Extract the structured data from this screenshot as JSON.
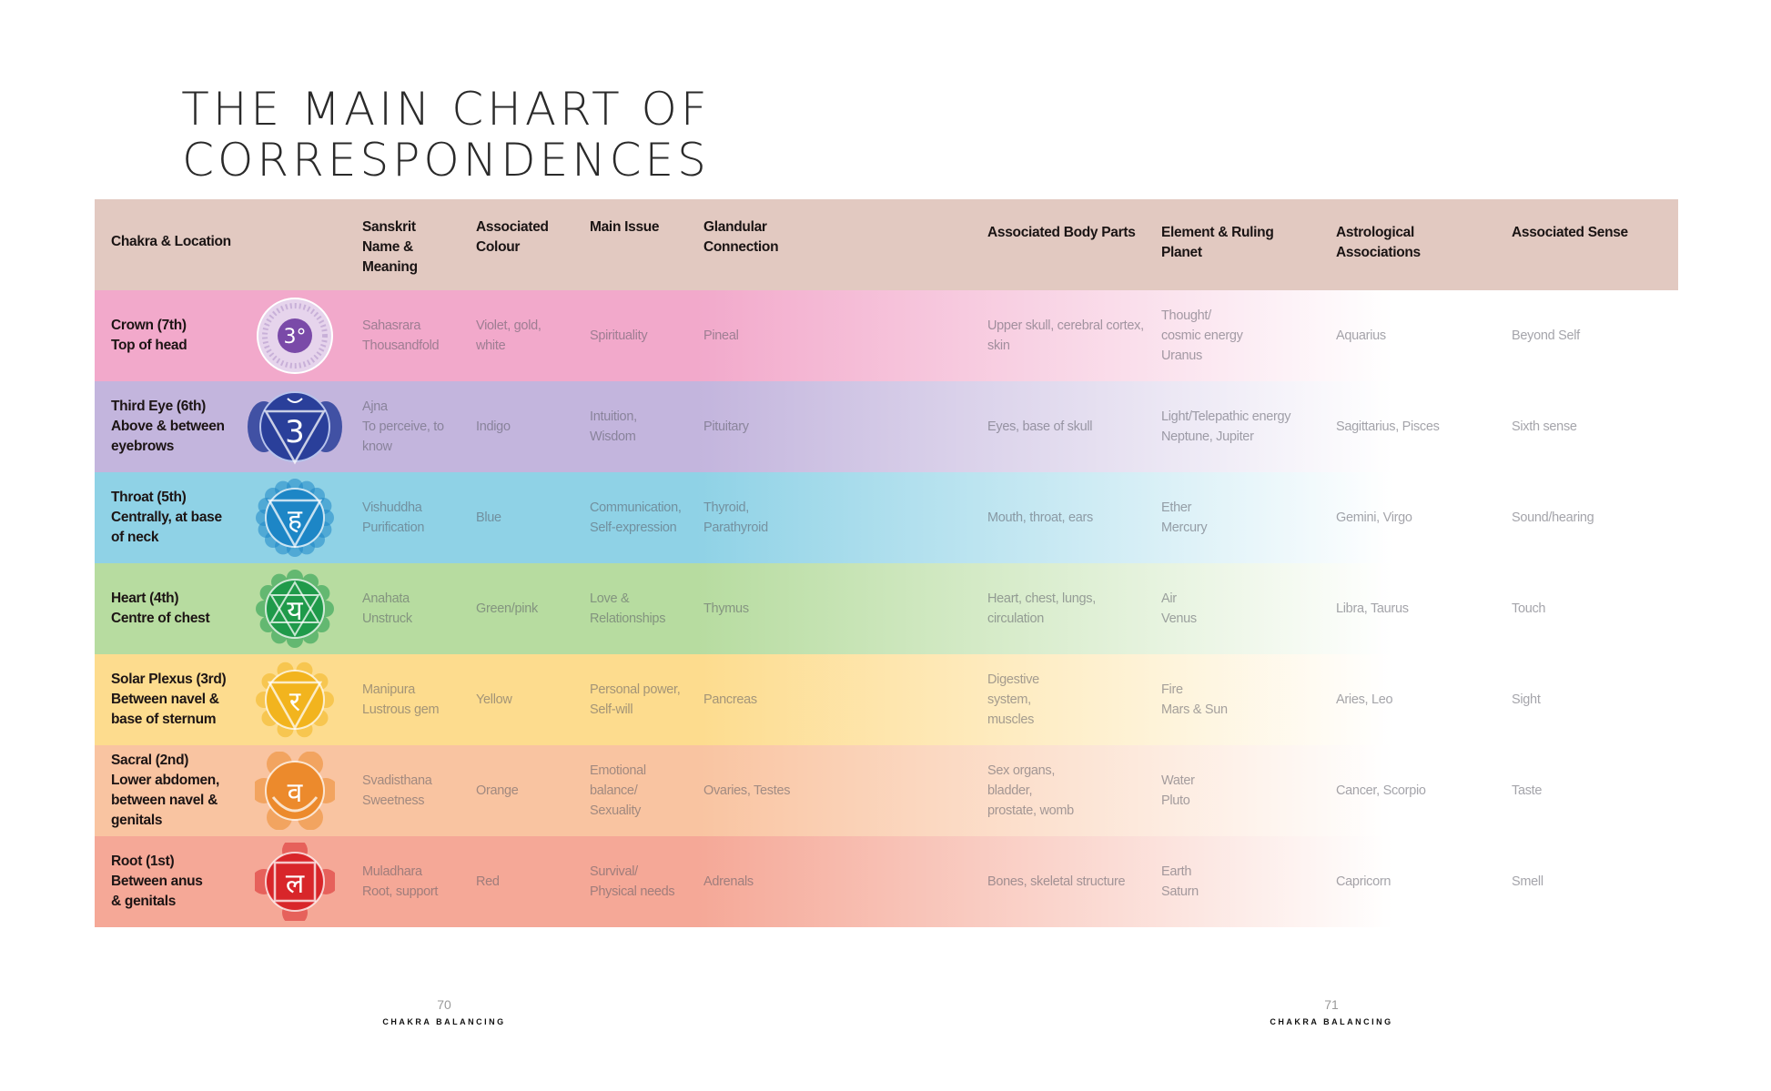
{
  "title": {
    "line1": "THE MAIN CHART OF",
    "line2": "CORRESPONDENCES"
  },
  "header": {
    "background": "#e2c9c1",
    "columns": [
      {
        "label": [
          "Chakra & Location"
        ]
      },
      {
        "label": [
          "Sanskrit",
          "Name &",
          "Meaning"
        ]
      },
      {
        "label": [
          "Associated",
          "Colour"
        ]
      },
      {
        "label": [
          "Main Issue"
        ]
      },
      {
        "label": [
          "Glandular",
          "Connection"
        ]
      },
      {
        "label": [
          "Associated Body Parts"
        ]
      },
      {
        "label": [
          "Element & Ruling",
          "Planet"
        ]
      },
      {
        "label": [
          "Astrological",
          "Associations"
        ]
      },
      {
        "label": [
          "Associated Sense"
        ]
      }
    ]
  },
  "rows": [
    {
      "color": "#f2a9cb",
      "icon": "crown-chakra-icon",
      "icon_color": "#7a4aa8",
      "location": [
        "Crown (7th)",
        "Top of head"
      ],
      "sanskrit": [
        "Sahasrara",
        "Thousandfold"
      ],
      "colour": [
        "Violet, gold,",
        "white"
      ],
      "issue": [
        "Spirituality"
      ],
      "gland": [
        "Pineal"
      ],
      "body": [
        "Upper skull, cerebral cortex,",
        "skin"
      ],
      "element": [
        "Thought/",
        "cosmic energy",
        "Uranus"
      ],
      "astro": [
        "Aquarius"
      ],
      "sense": [
        "Beyond Self"
      ]
    },
    {
      "color": "#c3b5dd",
      "icon": "third-eye-chakra-icon",
      "icon_color": "#2a3f9a",
      "location": [
        "Third Eye (6th)",
        "Above & between",
        "eyebrows"
      ],
      "sanskrit": [
        "Ajna",
        "To perceive, to",
        "know"
      ],
      "colour": [
        "Indigo"
      ],
      "issue": [
        "Intuition,",
        "Wisdom"
      ],
      "gland": [
        "Pituitary"
      ],
      "body": [
        "Eyes, base of skull"
      ],
      "element": [
        "Light/Telepathic energy",
        "Neptune, Jupiter"
      ],
      "astro": [
        "Sagittarius, Pisces"
      ],
      "sense": [
        "Sixth sense"
      ]
    },
    {
      "color": "#8fd2e6",
      "icon": "throat-chakra-icon",
      "icon_color": "#1d86c6",
      "location": [
        "Throat (5th)",
        "Centrally, at base",
        "of neck"
      ],
      "sanskrit": [
        "Vishuddha",
        "Purification"
      ],
      "colour": [
        "Blue"
      ],
      "issue": [
        "Communication,",
        "Self-expression"
      ],
      "gland": [
        "Thyroid,",
        "Parathyroid"
      ],
      "body": [
        "Mouth, throat, ears"
      ],
      "element": [
        "Ether",
        "Mercury"
      ],
      "astro": [
        "Gemini, Virgo"
      ],
      "sense": [
        "Sound/hearing"
      ]
    },
    {
      "color": "#b7dca0",
      "icon": "heart-chakra-icon",
      "icon_color": "#1f9a4a",
      "location": [
        "Heart (4th)",
        "Centre of chest"
      ],
      "sanskrit": [
        "Anahata",
        "Unstruck"
      ],
      "colour": [
        "Green/pink"
      ],
      "issue": [
        "Love &",
        "Relationships"
      ],
      "gland": [
        "Thymus"
      ],
      "body": [
        "Heart, chest, lungs,",
        "circulation"
      ],
      "element": [
        "Air",
        "Venus"
      ],
      "astro": [
        "Libra, Taurus"
      ],
      "sense": [
        "Touch"
      ]
    },
    {
      "color": "#fddc8e",
      "icon": "solar-plexus-chakra-icon",
      "icon_color": "#f2b41e",
      "location": [
        "Solar Plexus (3rd)",
        "Between navel &",
        "base of sternum"
      ],
      "sanskrit": [
        "Manipura",
        "Lustrous gem"
      ],
      "colour": [
        "Yellow"
      ],
      "issue": [
        "Personal power,",
        "Self-will"
      ],
      "gland": [
        "Pancreas"
      ],
      "body": [
        "Digestive",
        "system,",
        "muscles"
      ],
      "element": [
        "Fire",
        "Mars & Sun"
      ],
      "astro": [
        "Aries, Leo"
      ],
      "sense": [
        "Sight"
      ]
    },
    {
      "color": "#f9c4a1",
      "icon": "sacral-chakra-icon",
      "icon_color": "#ec8a2c",
      "location": [
        "Sacral (2nd)",
        "Lower abdomen,",
        "between navel &",
        "genitals"
      ],
      "sanskrit": [
        "Svadisthana",
        "Sweetness"
      ],
      "colour": [
        "Orange"
      ],
      "issue": [
        "Emotional",
        "balance/",
        "Sexuality"
      ],
      "gland": [
        "Ovaries, Testes"
      ],
      "body": [
        "Sex organs,",
        "bladder,",
        "prostate, womb"
      ],
      "element": [
        "Water",
        "Pluto"
      ],
      "astro": [
        "Cancer, Scorpio"
      ],
      "sense": [
        "Taste"
      ]
    },
    {
      "color": "#f5a897",
      "icon": "root-chakra-icon",
      "icon_color": "#d8262a",
      "location": [
        "Root (1st)",
        "Between anus",
        "& genitals"
      ],
      "sanskrit": [
        "Muladhara",
        "Root, support"
      ],
      "colour": [
        "Red"
      ],
      "issue": [
        "Survival/",
        "Physical needs"
      ],
      "gland": [
        "Adrenals"
      ],
      "body": [
        "Bones, skeletal structure"
      ],
      "element": [
        "Earth",
        "Saturn"
      ],
      "astro": [
        "Capricorn"
      ],
      "sense": [
        "Smell"
      ]
    }
  ],
  "footer": {
    "left": {
      "page": "70",
      "label": "CHAKRA BALANCING"
    },
    "right": {
      "page": "71",
      "label": "CHAKRA BALANCING"
    }
  }
}
